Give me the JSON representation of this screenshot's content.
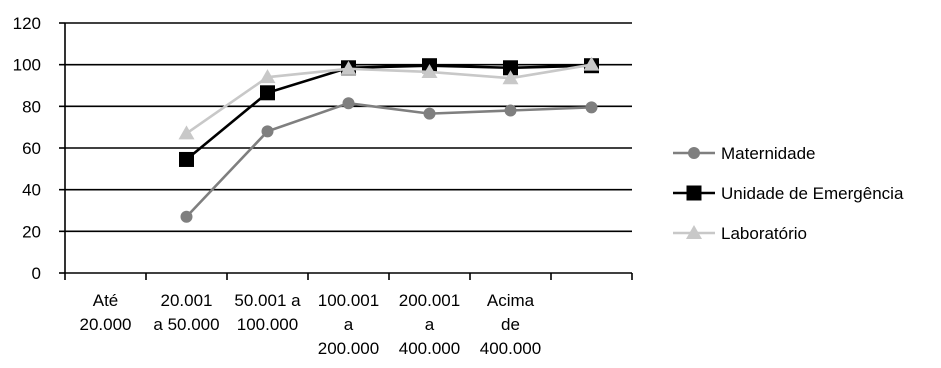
{
  "chart_data": {
    "type": "line",
    "categories": [
      [
        "Até",
        "20.000"
      ],
      [
        "20.001",
        "a 50.000"
      ],
      [
        "50.001 a",
        "100.000"
      ],
      [
        "100.001",
        "a",
        "200.000"
      ],
      [
        "200.001",
        "a",
        "400.000"
      ],
      [
        "Acima",
        "de",
        "400.000"
      ],
      [
        ""
      ]
    ],
    "ylim": [
      0,
      120
    ],
    "yticks": [
      0,
      20,
      40,
      60,
      80,
      100,
      120
    ],
    "grid": true,
    "legend_position": "right",
    "series": [
      {
        "name": "Maternidade",
        "color": "#7f7f7f",
        "marker": "circle",
        "values": [
          null,
          27,
          68,
          81.5,
          76.5,
          78,
          79.5
        ]
      },
      {
        "name": "Unidade de Emergência",
        "color": "#000000",
        "marker": "square",
        "values": [
          null,
          54.5,
          86.5,
          98.5,
          99.5,
          98.5,
          99.5
        ]
      },
      {
        "name": "Laboratório",
        "color": "#c8c8c8",
        "marker": "triangle",
        "values": [
          null,
          67,
          94,
          98,
          96.5,
          93.5,
          100
        ]
      }
    ]
  }
}
